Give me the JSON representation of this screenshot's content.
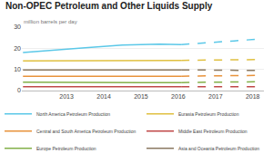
{
  "chart_data": {
    "type": "line",
    "title": "Non-OPEC Petroleum and Other Liquids Supply",
    "ylabel": "million barrels per day",
    "xlim": [
      2011.8,
      2018.3
    ],
    "xticks": [
      2013,
      2014,
      2015,
      2016,
      2017,
      2018
    ],
    "ylim": [
      0,
      30
    ],
    "yticks": [
      0,
      10,
      20,
      30
    ],
    "grid": "y",
    "legend": "bottom",
    "series": [
      {
        "name": "North America Petroleum Production",
        "color": "#5bc8e8",
        "line_style": "solid",
        "x": [
          2011.83,
          2012.5,
          2013.5,
          2014.5,
          2015.5,
          2016.08
        ],
        "values": [
          18.0,
          19.0,
          20.2,
          21.5,
          22.0,
          21.8
        ]
      },
      {
        "name": "North America Petroleum Production",
        "color": "#5bc8e8",
        "line_style": "dashed",
        "x": [
          2016.08,
          2017.0,
          2017.5,
          2018.25
        ],
        "values": [
          21.8,
          22.8,
          23.5,
          24.5
        ]
      },
      {
        "name": "Central and South America Petroleum Production",
        "color": "#e8923a",
        "line_style": "solid",
        "x": [
          2011.83,
          2013.0,
          2014.0,
          2015.0,
          2016.08
        ],
        "values": [
          6.8,
          6.9,
          6.9,
          6.8,
          6.8
        ]
      },
      {
        "name": "Central and South America Petroleum Production",
        "color": "#e8923a",
        "line_style": "dashed",
        "x": [
          2016.08,
          2017.0,
          2017.5,
          2018.25
        ],
        "values": [
          6.8,
          7.0,
          7.1,
          7.2
        ]
      },
      {
        "name": "Europe Petroleum Production",
        "color": "#82b048",
        "line_style": "solid",
        "x": [
          2011.83,
          2013.0,
          2014.0,
          2015.0,
          2016.08
        ],
        "values": [
          4.0,
          3.8,
          3.7,
          3.7,
          3.8
        ]
      },
      {
        "name": "Europe Petroleum Production",
        "color": "#82b048",
        "line_style": "dashed",
        "x": [
          2016.08,
          2017.0,
          2017.5,
          2018.25
        ],
        "values": [
          3.8,
          4.0,
          4.1,
          4.2
        ]
      },
      {
        "name": "Eurasia Petroleum Production",
        "color": "#e0c040",
        "line_style": "solid",
        "x": [
          2011.83,
          2013.0,
          2014.0,
          2015.0,
          2016.08
        ],
        "values": [
          14.0,
          14.0,
          14.1,
          14.2,
          14.3
        ]
      },
      {
        "name": "Eurasia Petroleum Production",
        "color": "#e0c040",
        "line_style": "dashed",
        "x": [
          2016.08,
          2017.0,
          2017.5,
          2018.25
        ],
        "values": [
          14.3,
          14.5,
          14.6,
          14.7
        ]
      },
      {
        "name": "Middle East Petroleum Production",
        "color": "#c04848",
        "line_style": "solid",
        "x": [
          2011.83,
          2013.0,
          2014.0,
          2015.0,
          2016.08
        ],
        "values": [
          1.8,
          1.8,
          1.8,
          1.8,
          1.8
        ]
      },
      {
        "name": "Middle East Petroleum Production",
        "color": "#c04848",
        "line_style": "dashed",
        "x": [
          2016.08,
          2017.0,
          2017.5,
          2018.25
        ],
        "values": [
          1.8,
          1.8,
          1.8,
          1.8
        ]
      },
      {
        "name": "Asia and Oceania Petroleum Production",
        "color": "#8a7860",
        "line_style": "solid",
        "x": [
          2011.83,
          2013.0,
          2014.0,
          2015.0,
          2016.08
        ],
        "values": [
          9.8,
          9.8,
          9.8,
          9.8,
          9.8
        ]
      },
      {
        "name": "Asia and Oceania Petroleum Production",
        "color": "#8a7860",
        "line_style": "dashed",
        "x": [
          2016.08,
          2017.0,
          2017.5,
          2018.25
        ],
        "values": [
          9.8,
          9.7,
          9.6,
          9.5
        ]
      }
    ]
  }
}
